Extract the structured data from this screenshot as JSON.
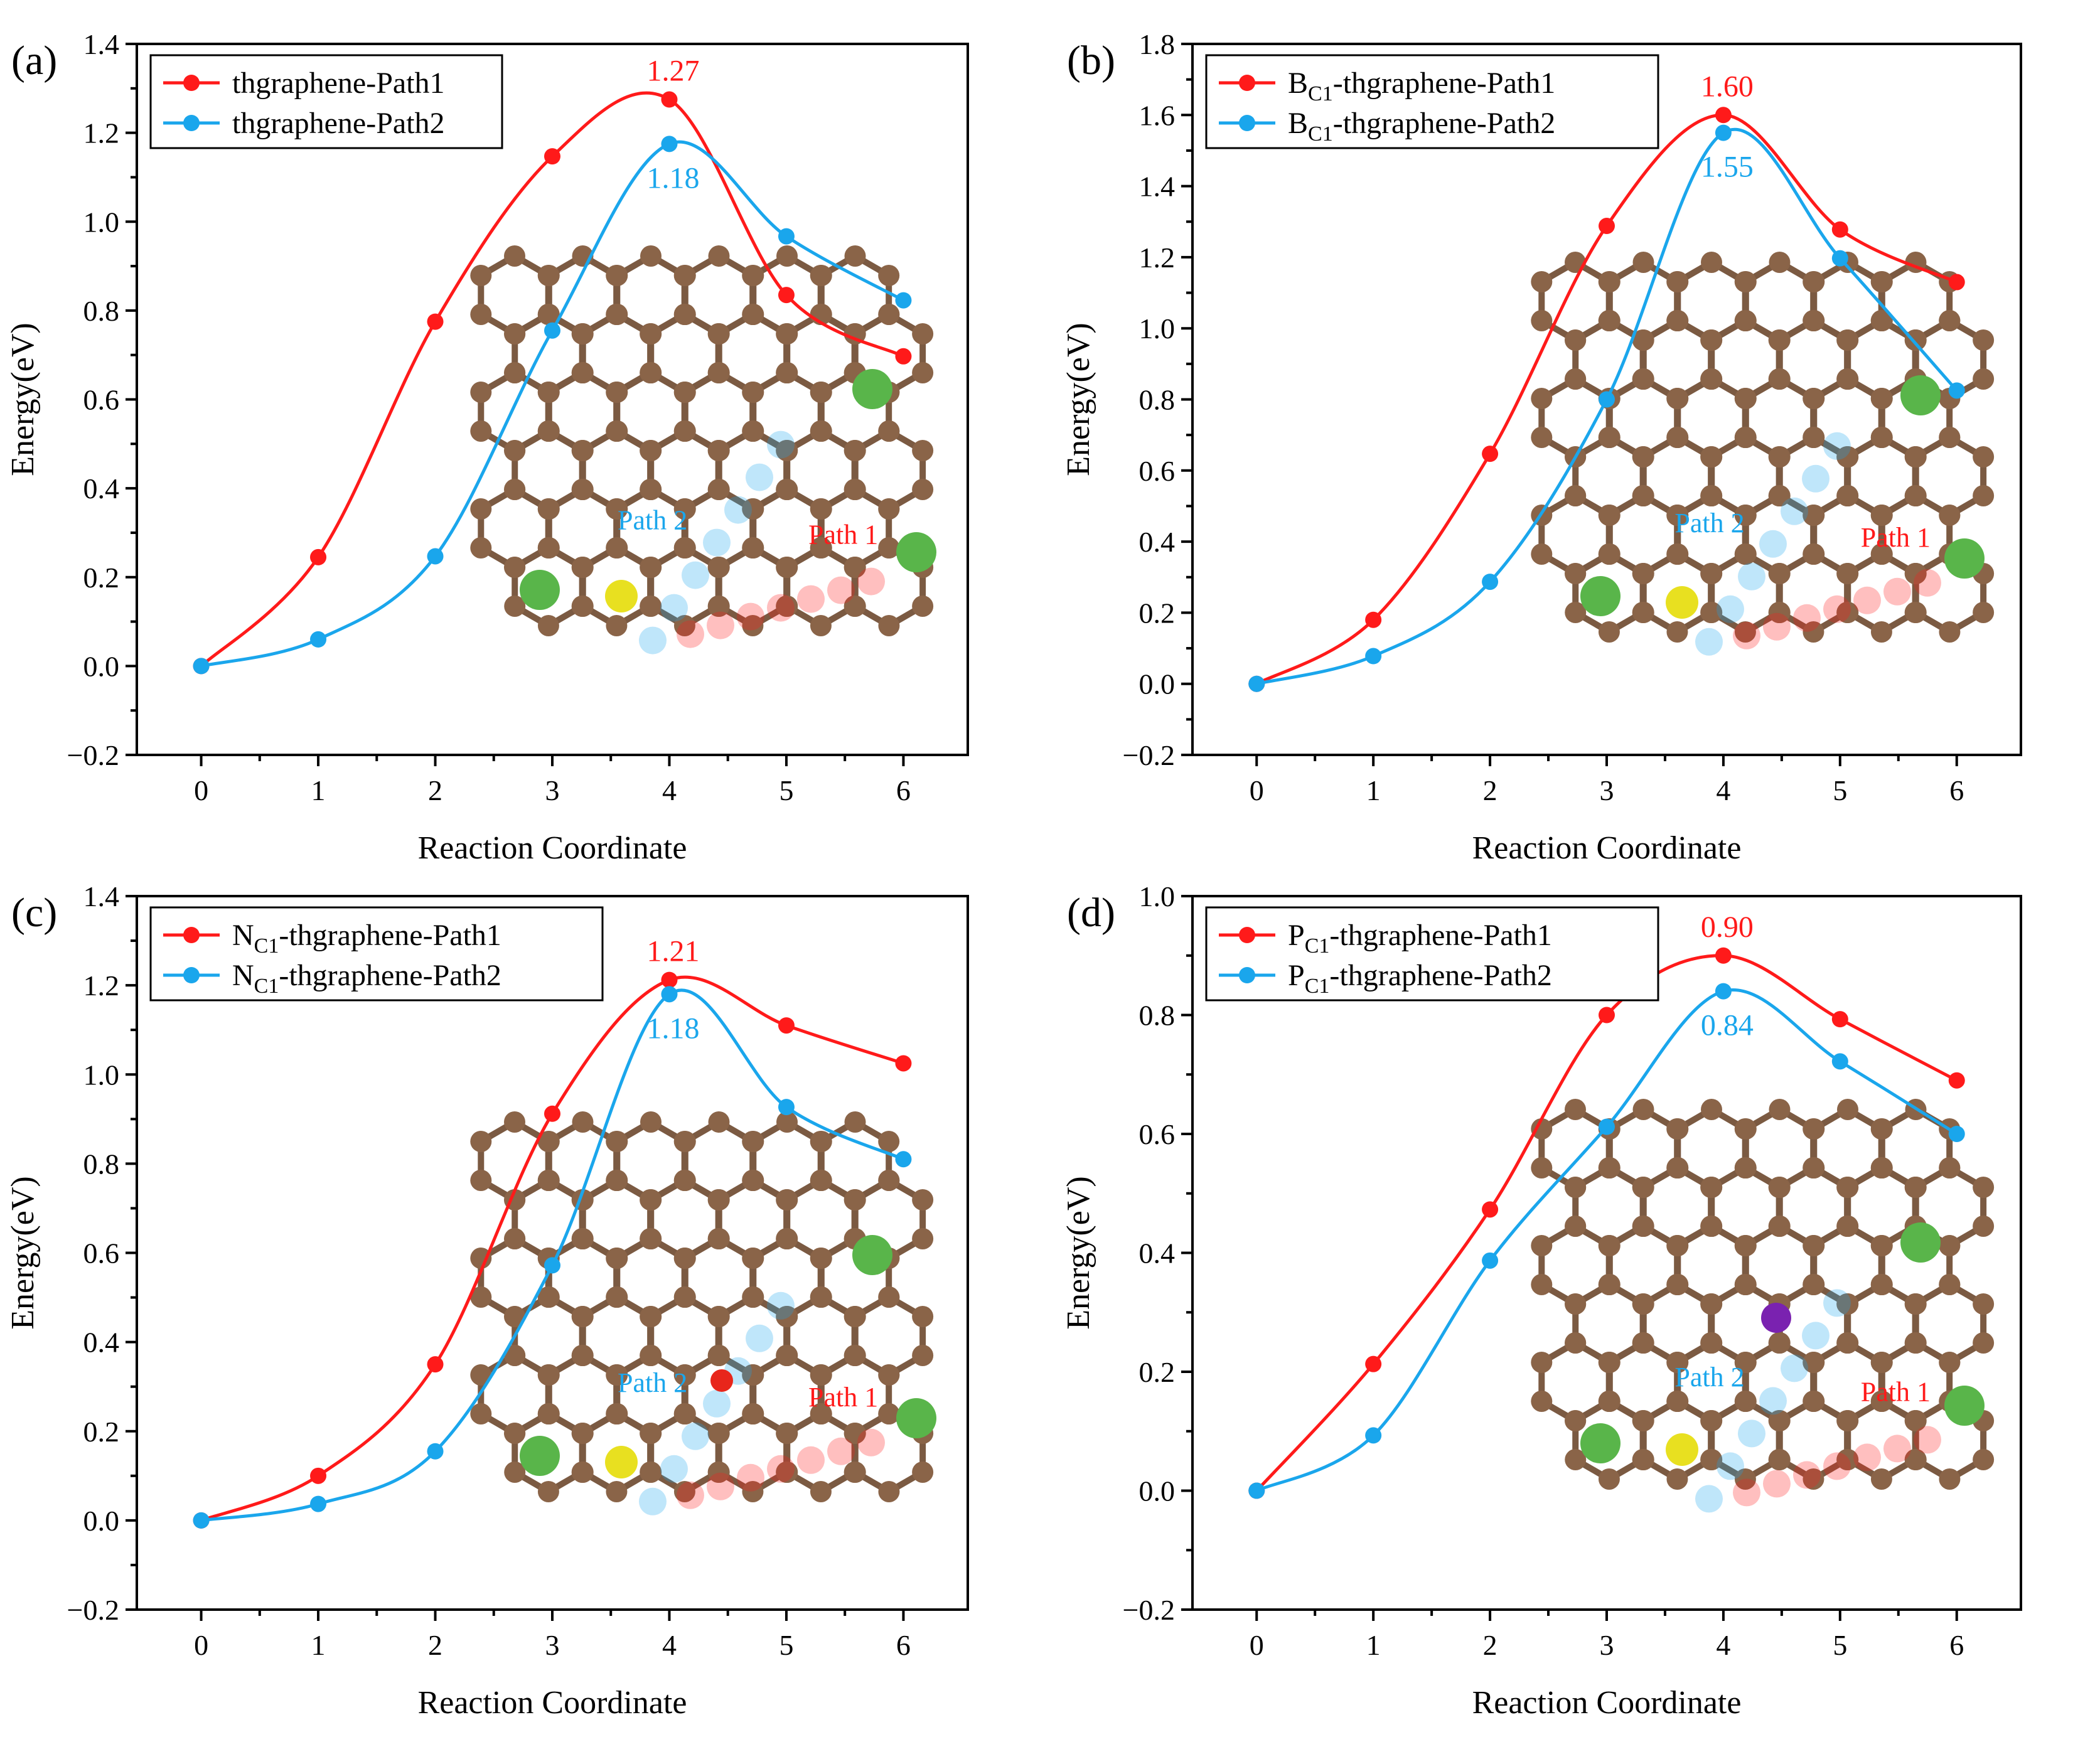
{
  "figure": {
    "colors": {
      "path1": "#ff1a1a",
      "path2": "#1aa6ec",
      "carbon": "#8a6448",
      "cl": "#59b54a",
      "s": "#e8e020",
      "p": "#7a22b0",
      "o": "#e8261b"
    }
  },
  "chart_data": [
    {
      "type": "line",
      "panel": "(a)",
      "xlabel": "Reaction Coordinate",
      "ylabel": "Energy(eV)",
      "xlim": [
        -0.55,
        6.55
      ],
      "ylim": [
        -0.2,
        1.4
      ],
      "xticks": [
        0,
        1,
        2,
        3,
        4,
        5,
        6
      ],
      "yticks": [
        -0.2,
        0.0,
        0.2,
        0.4,
        0.6,
        0.8,
        1.0,
        1.2,
        1.4
      ],
      "ytick_labels": [
        "−0.2",
        "0.0",
        "0.2",
        "0.4",
        "0.6",
        "0.8",
        "1.0",
        "1.2",
        "1.4"
      ],
      "x": [
        0,
        1,
        2,
        3,
        4,
        5,
        6
      ],
      "legend": {
        "placement": "top-left"
      },
      "series": [
        {
          "name_main": "thgraphene-Path1",
          "name_sub": "",
          "name_rest": "",
          "color": "#ff1a1a",
          "values": [
            0.0,
            0.245,
            0.775,
            1.147,
            1.275,
            0.835,
            0.697
          ],
          "peak": "1.27",
          "peak_position": "above"
        },
        {
          "name_main": "thgraphene-Path2",
          "name_sub": "",
          "name_rest": "",
          "color": "#1aa6ec",
          "values": [
            0.0,
            0.06,
            0.247,
            0.755,
            1.175,
            0.967,
            0.823
          ],
          "peak": "1.18",
          "peak_position": "below"
        }
      ],
      "annotations": {
        "path1": "Path 1",
        "path2": "Path 2"
      }
    },
    {
      "type": "line",
      "panel": "(b)",
      "xlabel": "Reaction Coordinate",
      "ylabel": "Energy(eV)",
      "xlim": [
        -0.55,
        6.55
      ],
      "ylim": [
        -0.2,
        1.8
      ],
      "xticks": [
        0,
        1,
        2,
        3,
        4,
        5,
        6
      ],
      "yticks": [
        -0.2,
        0.0,
        0.2,
        0.4,
        0.6,
        0.8,
        1.0,
        1.2,
        1.4,
        1.6,
        1.8
      ],
      "ytick_labels": [
        "−0.2",
        "0.0",
        "0.2",
        "0.4",
        "0.6",
        "0.8",
        "1.0",
        "1.2",
        "1.4",
        "1.6",
        "1.8"
      ],
      "x": [
        0,
        1,
        2,
        3,
        4,
        5,
        6
      ],
      "legend": {
        "placement": "top-left"
      },
      "series": [
        {
          "name_main": "B",
          "name_sub": "C1",
          "name_rest": "-thgraphene-Path1",
          "color": "#ff1a1a",
          "values": [
            0.0,
            0.18,
            0.647,
            1.288,
            1.6,
            1.278,
            1.13
          ],
          "peak": "1.60",
          "peak_position": "above"
        },
        {
          "name_main": "B",
          "name_sub": "C1",
          "name_rest": "-thgraphene-Path2",
          "color": "#1aa6ec",
          "values": [
            0.0,
            0.078,
            0.287,
            0.8,
            1.55,
            1.197,
            0.825
          ],
          "peak": "1.55",
          "peak_position": "below"
        }
      ],
      "annotations": {
        "path1": "Path 1",
        "path2": "Path 2"
      }
    },
    {
      "type": "line",
      "panel": "(c)",
      "xlabel": "Reaction Coordinate",
      "ylabel": "Energy(eV)",
      "xlim": [
        -0.55,
        6.55
      ],
      "ylim": [
        -0.2,
        1.4
      ],
      "xticks": [
        0,
        1,
        2,
        3,
        4,
        5,
        6
      ],
      "yticks": [
        -0.2,
        0.0,
        0.2,
        0.4,
        0.6,
        0.8,
        1.0,
        1.2,
        1.4
      ],
      "ytick_labels": [
        "−0.2",
        "0.0",
        "0.2",
        "0.4",
        "0.6",
        "0.8",
        "1.0",
        "1.2",
        "1.4"
      ],
      "x": [
        0,
        1,
        2,
        3,
        4,
        5,
        6
      ],
      "legend": {
        "placement": "top-left"
      },
      "series": [
        {
          "name_main": "N",
          "name_sub": "C1",
          "name_rest": "-thgraphene-Path1",
          "color": "#ff1a1a",
          "values": [
            0.0,
            0.1,
            0.35,
            0.912,
            1.212,
            1.11,
            1.025
          ],
          "peak": "1.21",
          "peak_position": "above"
        },
        {
          "name_main": "N",
          "name_sub": "C1",
          "name_rest": "-thgraphene-Path2",
          "color": "#1aa6ec",
          "values": [
            0.0,
            0.037,
            0.155,
            0.572,
            1.18,
            0.927,
            0.81
          ],
          "peak": "1.18",
          "peak_position": "below"
        }
      ],
      "annotations": {
        "path1": "Path 1",
        "path2": "Path 2"
      }
    },
    {
      "type": "line",
      "panel": "(d)",
      "xlabel": "Reaction Coordinate",
      "ylabel": "Energy(eV)",
      "xlim": [
        -0.55,
        6.55
      ],
      "ylim": [
        -0.2,
        1.0
      ],
      "xticks": [
        0,
        1,
        2,
        3,
        4,
        5,
        6
      ],
      "yticks": [
        -0.2,
        0.0,
        0.2,
        0.4,
        0.6,
        0.8,
        1.0
      ],
      "ytick_labels": [
        "−0.2",
        "0.0",
        "0.2",
        "0.4",
        "0.6",
        "0.8",
        "1.0"
      ],
      "x": [
        0,
        1,
        2,
        3,
        4,
        5,
        6
      ],
      "legend": {
        "placement": "top-left"
      },
      "series": [
        {
          "name_main": "P",
          "name_sub": "C1",
          "name_rest": "-thgraphene-Path1",
          "color": "#ff1a1a",
          "values": [
            0.0,
            0.213,
            0.473,
            0.8,
            0.9,
            0.793,
            0.69
          ],
          "peak": "0.90",
          "peak_position": "above"
        },
        {
          "name_main": "P",
          "name_sub": "C1",
          "name_rest": "-thgraphene-Path2",
          "color": "#1aa6ec",
          "values": [
            0.0,
            0.093,
            0.387,
            0.612,
            0.84,
            0.722,
            0.6
          ],
          "peak": "0.84",
          "peak_position": "below"
        }
      ],
      "annotations": {
        "path1": "Path 1",
        "path2": "Path 2"
      }
    }
  ]
}
